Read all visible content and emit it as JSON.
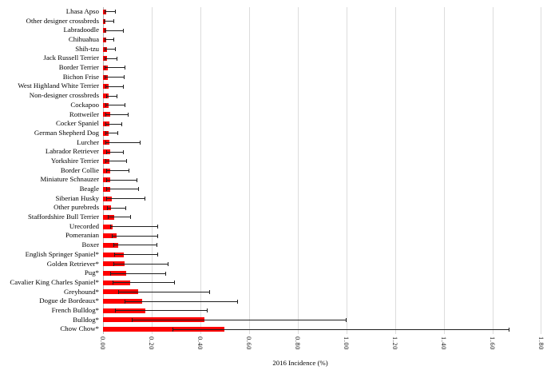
{
  "chart_data": {
    "type": "bar",
    "orientation": "horizontal",
    "title": "",
    "xlabel": "2016 Incidence (%)",
    "ylabel": "",
    "xlim": [
      0,
      1.8
    ],
    "x_tick_labels": [
      "0.00",
      "0.20",
      "0.40",
      "0.60",
      "0.80",
      "1.00",
      "1.20",
      "1.40",
      "1.60",
      "1.80"
    ],
    "grid": true,
    "legend": false,
    "bar_color": "#fe0000",
    "error_bar_color": "#1f1f1f",
    "gridline_color": "#dcdcdc",
    "categories": [
      "Lhasa Apso",
      "Other designer crossbreds",
      "Labradoodle",
      "Chihuahua",
      "Shih-tzu",
      "Jack Russell Terrier",
      "Border Terrier",
      "Bichon Frise",
      "West Highland White Terrier",
      "Non-designer crossbreds",
      "Cockapoo",
      "Rottweiler",
      "Cocker Spaniel",
      "German Shepherd Dog",
      "Lurcher",
      "Labrador Retriever",
      "Yorkshire Terrier",
      "Border Collie",
      "Miniature Schnauzer",
      "Beagle",
      "Siberian Husky",
      "Other purebreds",
      "Staffordshire Bull Terrier",
      "Urecorded",
      "Pomeranian",
      "Boxer",
      "English Springer Spaniel*",
      "Golden Retriever*",
      "Pug*",
      "Cavalier King Charles Spaniel*",
      "Greyhound*",
      "Dogue de Bordeaux*",
      "French Bulldog*",
      "Bulldog*",
      "Chow Chow*"
    ],
    "series": [
      {
        "name": "2016 Incidence (%)",
        "values": [
          0.012,
          0.01,
          0.013,
          0.013,
          0.016,
          0.017,
          0.02,
          0.021,
          0.023,
          0.024,
          0.023,
          0.028,
          0.025,
          0.022,
          0.027,
          0.03,
          0.027,
          0.029,
          0.03,
          0.031,
          0.035,
          0.032,
          0.046,
          0.039,
          0.056,
          0.063,
          0.085,
          0.088,
          0.096,
          0.112,
          0.145,
          0.162,
          0.175,
          0.417,
          0.497
        ],
        "ci_low": [
          0.005,
          0.004,
          0.005,
          0.005,
          0.007,
          0.007,
          0.008,
          0.008,
          0.009,
          0.012,
          0.009,
          0.011,
          0.01,
          0.01,
          0.011,
          0.013,
          0.011,
          0.012,
          0.012,
          0.012,
          0.014,
          0.015,
          0.021,
          0.03,
          0.035,
          0.042,
          0.045,
          0.042,
          0.031,
          0.039,
          0.063,
          0.089,
          0.05,
          0.117,
          0.285
        ],
        "ci_high": [
          0.052,
          0.045,
          0.084,
          0.046,
          0.052,
          0.059,
          0.093,
          0.087,
          0.084,
          0.058,
          0.092,
          0.104,
          0.079,
          0.063,
          0.153,
          0.085,
          0.099,
          0.107,
          0.14,
          0.149,
          0.175,
          0.094,
          0.116,
          0.227,
          0.227,
          0.224,
          0.225,
          0.269,
          0.258,
          0.296,
          0.438,
          0.553,
          0.43,
          1.0,
          1.67
        ]
      }
    ]
  }
}
